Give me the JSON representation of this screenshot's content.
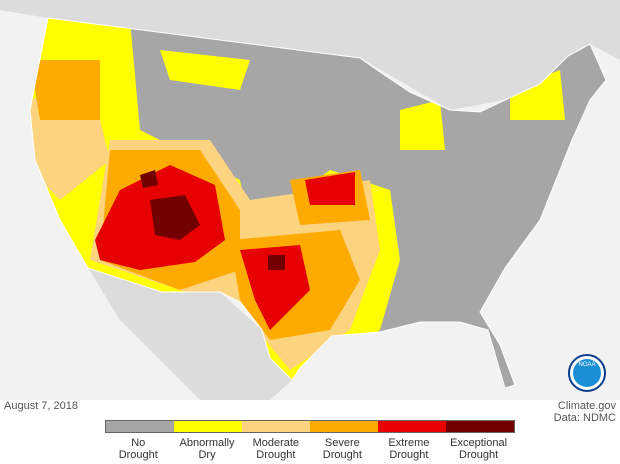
{
  "map": {
    "date": "August 7, 2018",
    "credit": "Climate.gov",
    "source": "Data: NDMC",
    "logo_text": "NOAA",
    "legend": [
      {
        "label": "No Drought",
        "color": "#a6a6a6"
      },
      {
        "label": "Abnormally Dry",
        "color": "#ffff00"
      },
      {
        "label": "Moderate Drought",
        "color": "#fcd37f"
      },
      {
        "label": "Severe Drought",
        "color": "#ffaa00"
      },
      {
        "label": "Extreme Drought",
        "color": "#e60000"
      },
      {
        "label": "Exceptional Drought",
        "color": "#730000"
      }
    ]
  }
}
